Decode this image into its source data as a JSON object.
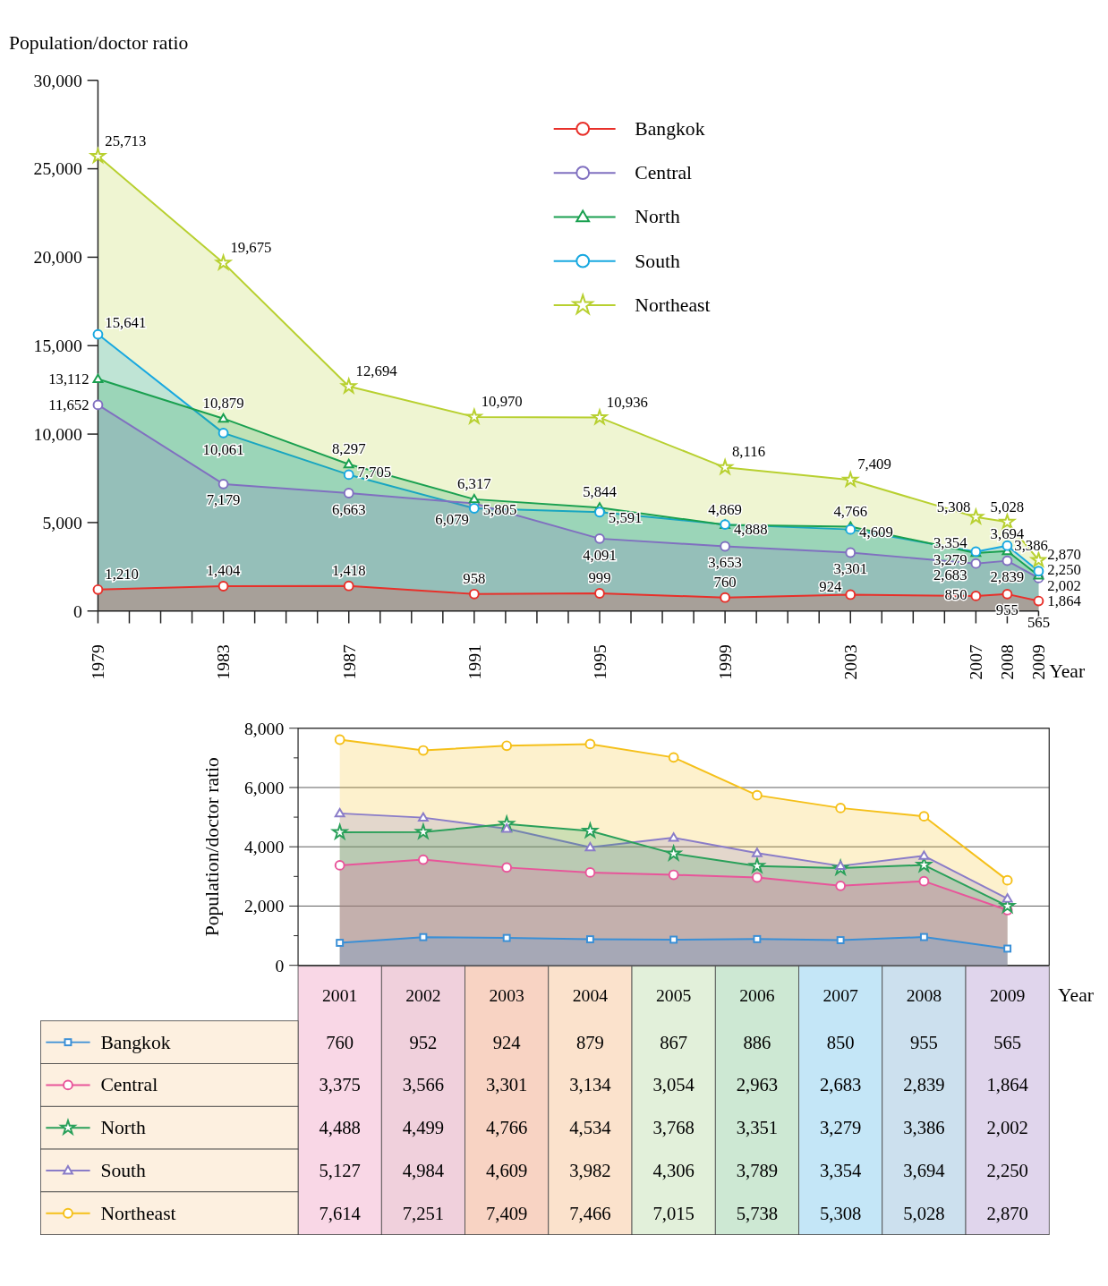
{
  "chart_data": [
    {
      "type": "area",
      "xlabel": "Year",
      "ylabel": "Population/doctor ratio",
      "x": [
        1979,
        1983,
        1987,
        1991,
        1995,
        1999,
        2003,
        2007,
        2008,
        2009
      ],
      "xlim": [
        1979,
        2009
      ],
      "xticks": [
        1979,
        {
          "value": 1980,
          "label": null
        },
        {
          "value": 1981,
          "label": null
        },
        {
          "value": 1982,
          "label": null
        },
        1983,
        {
          "value": 1984,
          "label": null
        },
        {
          "value": 1985,
          "label": null
        },
        {
          "value": 1986,
          "label": null
        },
        1987,
        {
          "value": 1988,
          "label": null
        },
        {
          "value": 1989,
          "label": null
        },
        {
          "value": 1990,
          "label": null
        },
        1991,
        {
          "value": 1992,
          "label": null
        },
        {
          "value": 1993,
          "label": null
        },
        {
          "value": 1994,
          "label": null
        },
        1995,
        {
          "value": 1996,
          "label": null
        },
        {
          "value": 1997,
          "label": null
        },
        {
          "value": 1998,
          "label": null
        },
        1999,
        {
          "value": 2000,
          "label": null
        },
        {
          "value": 2001,
          "label": null
        },
        {
          "value": 2002,
          "label": null
        },
        2003,
        {
          "value": 2004,
          "label": null
        },
        {
          "value": 2005,
          "label": null
        },
        {
          "value": 2006,
          "label": null
        },
        2007,
        2008,
        2009
      ],
      "ylim": [
        0,
        30000
      ],
      "yticks": [
        {
          "value": 0,
          "label": "0"
        },
        {
          "value": 5000,
          "label": "5,000"
        },
        {
          "value": 10000,
          "label": "10,000"
        },
        {
          "value": 15000,
          "label": "15,000"
        },
        {
          "value": 20000,
          "label": "20,000"
        },
        {
          "value": 25000,
          "label": "25,000"
        },
        {
          "value": 30000,
          "label": "30,000"
        }
      ],
      "grid": false,
      "legend": "top right",
      "series": [
        {
          "name": "Bangkok",
          "color": "#e8302a",
          "marker": "circle",
          "values": [
            1210,
            1404,
            1418,
            958,
            999,
            760,
            924,
            850,
            955,
            565
          ],
          "value_labels": [
            "1,210",
            "1,404",
            "1,418",
            "958",
            "999",
            "760",
            "924",
            "850",
            "955",
            "565"
          ]
        },
        {
          "name": "Central",
          "color": "#8070c0",
          "marker": "circle",
          "values": [
            11652,
            7179,
            6663,
            6079,
            4091,
            3653,
            3301,
            2683,
            2839,
            1864
          ],
          "value_labels": [
            "11,652",
            "7,179",
            "6,663",
            "6,079",
            "4,091",
            "3,653",
            "3,301",
            "2,683",
            "2,839",
            "1,864"
          ]
        },
        {
          "name": "North",
          "color": "#1aa050",
          "marker": "triangle",
          "values": [
            13112,
            10879,
            8297,
            6317,
            5844,
            4869,
            4766,
            3279,
            3386,
            2002
          ],
          "value_labels": [
            "13,112",
            "10,879",
            "8,297",
            "6,317",
            "5,844",
            "4,869",
            "4,766",
            "3,279",
            "3,386",
            "2,002"
          ]
        },
        {
          "name": "South",
          "color": "#18a8e0",
          "marker": "circle",
          "values": [
            15641,
            10061,
            7705,
            5805,
            5591,
            4888,
            4609,
            3354,
            3694,
            2250
          ],
          "value_labels": [
            "15,641",
            "10,061",
            "7,705",
            "5,805",
            "5,591",
            "4,888",
            "4,609",
            "3,354",
            "3,694",
            "2,250"
          ]
        },
        {
          "name": "Northeast",
          "color": "#b8d030",
          "marker": "star",
          "values": [
            25713,
            19675,
            12694,
            10970,
            10936,
            8116,
            7409,
            5308,
            5028,
            2870
          ],
          "value_labels": [
            "25,713",
            "19,675",
            "12,694",
            "10,970",
            "10,936",
            "8,116",
            "7,409",
            "5,308",
            "5,028",
            "2,870"
          ]
        }
      ]
    },
    {
      "type": "area",
      "xlabel": "Year",
      "ylabel": "Population/doctor ratio",
      "categories": [
        "2001",
        "2002",
        "2003",
        "2004",
        "2005",
        "2006",
        "2007",
        "2008",
        "2009"
      ],
      "ylim": [
        0,
        8000
      ],
      "yticks": [
        {
          "value": 0,
          "label": "0"
        },
        {
          "value": 1000,
          "label": null
        },
        {
          "value": 2000,
          "label": "2,000"
        },
        {
          "value": 3000,
          "label": null
        },
        {
          "value": 4000,
          "label": "4,000"
        },
        {
          "value": 5000,
          "label": null
        },
        {
          "value": 6000,
          "label": "6,000"
        },
        {
          "value": 7000,
          "label": null
        },
        {
          "value": 8000,
          "label": "8,000"
        }
      ],
      "grid": "y",
      "legend": "bottom",
      "series": [
        {
          "name": "Bangkok",
          "color": "#3a8fd6",
          "marker": "square",
          "values": [
            760,
            952,
            924,
            879,
            867,
            886,
            850,
            955,
            565
          ],
          "value_labels": [
            "760",
            "952",
            "924",
            "879",
            "867",
            "886",
            "850",
            "955",
            "565"
          ]
        },
        {
          "name": "Central",
          "color": "#e8559a",
          "marker": "circle",
          "values": [
            3375,
            3566,
            3301,
            3134,
            3054,
            2963,
            2683,
            2839,
            1864
          ],
          "value_labels": [
            "3,375",
            "3,566",
            "3,301",
            "3,134",
            "3,054",
            "2,963",
            "2,683",
            "2,839",
            "1,864"
          ]
        },
        {
          "name": "North",
          "color": "#2aa05a",
          "marker": "star",
          "values": [
            4488,
            4499,
            4766,
            4534,
            3768,
            3351,
            3279,
            3386,
            2002
          ],
          "value_labels": [
            "4,488",
            "4,499",
            "4,766",
            "4,534",
            "3,768",
            "3,351",
            "3,279",
            "3,386",
            "2,002"
          ]
        },
        {
          "name": "South",
          "color": "#8a7cc8",
          "marker": "triangle",
          "values": [
            5127,
            4984,
            4609,
            3982,
            4306,
            3789,
            3354,
            3694,
            2250
          ],
          "value_labels": [
            "5,127",
            "4,984",
            "4,609",
            "3,982",
            "4,306",
            "3,789",
            "3,354",
            "3,694",
            "2,250"
          ]
        },
        {
          "name": "Northeast",
          "color": "#f5c01a",
          "marker": "circle",
          "values": [
            7614,
            7251,
            7409,
            7466,
            7015,
            5738,
            5308,
            5028,
            2870
          ],
          "value_labels": [
            "7,614",
            "7,251",
            "7,409",
            "7,466",
            "7,015",
            "5,738",
            "5,308",
            "5,028",
            "2,870"
          ]
        }
      ]
    }
  ]
}
